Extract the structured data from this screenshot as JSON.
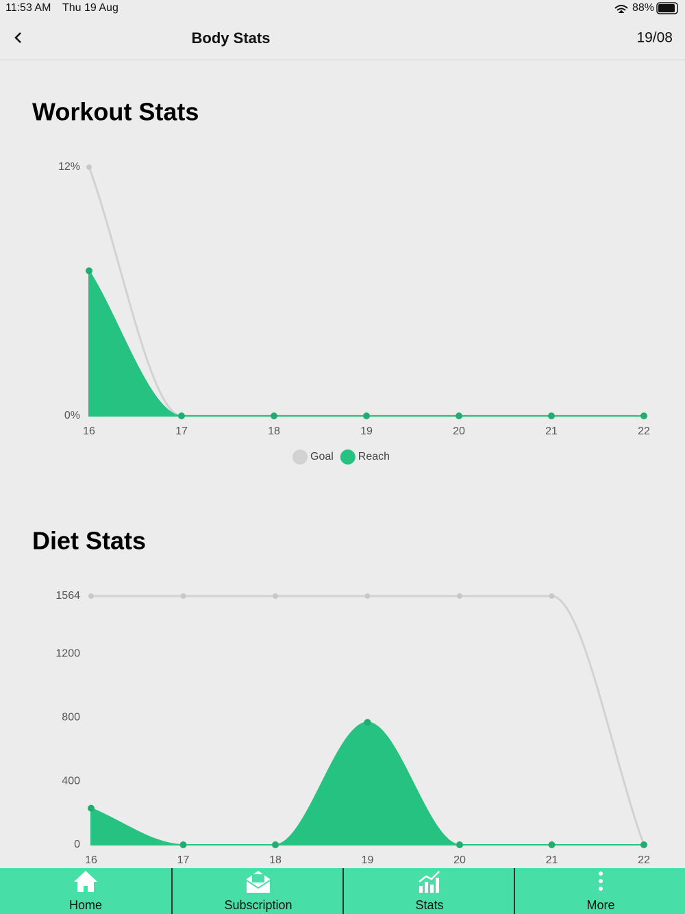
{
  "status_bar": {
    "time": "11:53 AM",
    "date": "Thu 19 Aug",
    "battery": "88%"
  },
  "nav": {
    "title": "Body Stats",
    "date": "19/08"
  },
  "chart_data": [
    {
      "type": "area",
      "title": "Workout Stats",
      "categories": [
        "16",
        "17",
        "18",
        "19",
        "20",
        "21",
        "22"
      ],
      "series": [
        {
          "name": "Goal",
          "color": "#d2d2d2",
          "area": false,
          "values": [
            12,
            0,
            0,
            0,
            0,
            0,
            0
          ]
        },
        {
          "name": "Reach",
          "color": "#26c281",
          "area": true,
          "values": [
            7,
            0,
            0,
            0,
            0,
            0,
            0
          ]
        }
      ],
      "ylim": [
        0,
        12
      ],
      "yticks": [
        {
          "value": 0,
          "label": "0%"
        },
        {
          "value": 12,
          "label": "12%"
        }
      ],
      "legend": "bottom"
    },
    {
      "type": "area",
      "title": "Diet Stats",
      "categories": [
        "16",
        "17",
        "18",
        "19",
        "20",
        "21",
        "22"
      ],
      "series": [
        {
          "color": "#d2d2d2",
          "area": false,
          "values": [
            1564,
            1564,
            1564,
            1564,
            1564,
            1564,
            0
          ]
        },
        {
          "color": "#26c281",
          "area": true,
          "values": [
            230,
            0,
            0,
            770,
            0,
            0,
            0
          ]
        }
      ],
      "ylim": [
        0,
        1564
      ],
      "yticks": [
        0,
        400,
        800,
        1200,
        1564
      ]
    }
  ],
  "tab_bar": {
    "items": [
      "Home",
      "Subscription",
      "Stats",
      "More"
    ]
  }
}
